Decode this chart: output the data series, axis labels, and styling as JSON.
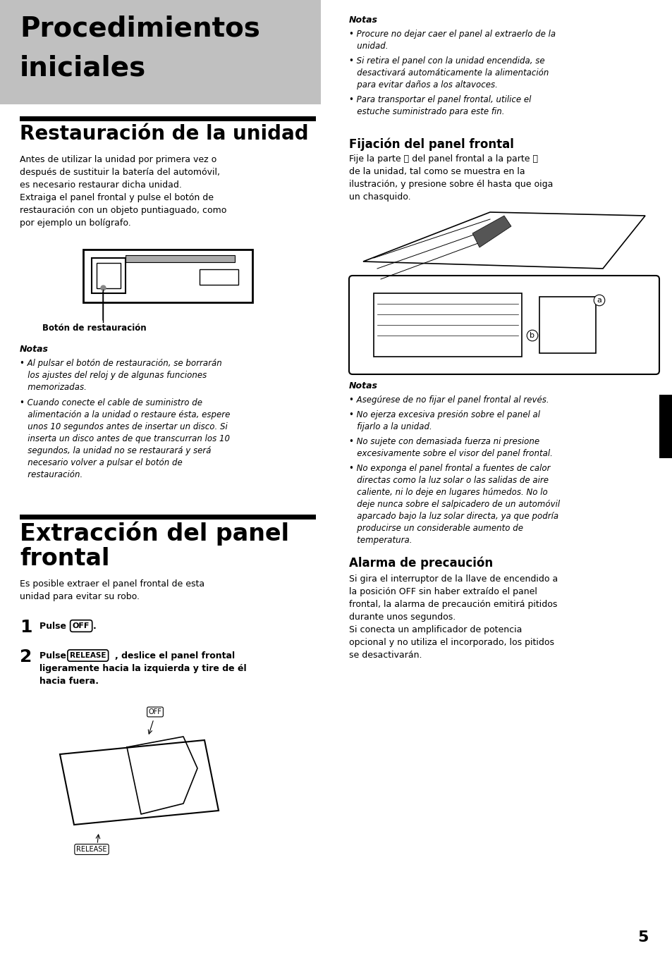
{
  "bg_color": "#ffffff",
  "page_number": "5",
  "header_bg": "#c0c0c0",
  "header_title_line1": "Procedimientos",
  "header_title_line2": "iniciales",
  "section1_title": "Restauración de la unidad",
  "section1_body_lines": [
    "Antes de utilizar la unidad por primera vez o",
    "después de sustituir la batería del automóvil,",
    "es necesario restaurar dicha unidad.",
    "Extraiga el panel frontal y pulse el botón de",
    "restauración con un objeto puntiaguado, como",
    "por ejemplo un bolígrafo."
  ],
  "section1_label": "Botón de restauración",
  "section1_notes_title": "Notas",
  "section1_notes": [
    [
      "Al pulsar el botón de restauración, se borrarán",
      "los ajustes del reloj y de algunas funciones",
      "memorizadas."
    ],
    [
      "Cuando conecte el cable de suministro de",
      "alimentación a la unidad o restaure ésta, espere",
      "unos 10 segundos antes de insertar un disco. Si",
      "inserta un disco antes de que transcurran los 10",
      "segundos, la unidad no se restaurará y será",
      "necesario volver a pulsar el botón de",
      "restauración."
    ]
  ],
  "section2_title_line1": "Extracción del panel",
  "section2_title_line2": "frontal",
  "section2_body_lines": [
    "Es posible extraer el panel frontal de esta",
    "unidad para evitar su robo."
  ],
  "step1_text": "Pulse",
  "step1_btn": "OFF",
  "step1_end": ".",
  "step2_text": "Pulse",
  "step2_btn": "RELEASE",
  "step2_bold_lines": [
    ", deslice el panel frontal",
    "ligeramente hacia la izquierda y tire de él",
    "hacia fuera."
  ],
  "right_notes_title": "Notas",
  "right_notes": [
    [
      "Procure no dejar caer el panel al extraerlo de la",
      "unidad."
    ],
    [
      "Si retira el panel con la unidad encendida, se",
      "desactivará automáticamente la alimentación",
      "para evitar daños a los altavoces."
    ],
    [
      "Para transportar el panel frontal, utilice el",
      "estuche suministrado para este fin."
    ]
  ],
  "fijacion_title": "Fijación del panel frontal",
  "fijacion_body_lines": [
    "Fije la parte ⓐ del panel frontal a la parte ⓑ",
    "de la unidad, tal como se muestra en la",
    "ilustración, y presione sobre él hasta que oiga",
    "un chasquido."
  ],
  "right_notes2_title": "Notas",
  "right_notes2": [
    [
      "Asegúrese de no fijar el panel frontal al revés."
    ],
    [
      "No ejerza excesiva presión sobre el panel al",
      "fijarlo a la unidad."
    ],
    [
      "No sujete con demasiada fuerza ni presione",
      "excesivamente sobre el visor del panel frontal."
    ],
    [
      "No exponga el panel frontal a fuentes de calor",
      "directas como la luz solar o las salidas de aire",
      "caliente, ni lo deje en lugares húmedos. No lo",
      "deje nunca sobre el salpicadero de un automóvil",
      "aparcado bajo la luz solar directa, ya que podría",
      "producirse un considerable aumento de",
      "temperatura."
    ]
  ],
  "alarma_title": "Alarma de precaución",
  "alarma_body_lines": [
    "Si gira el interruptor de la llave de encendido a",
    "la posición OFF sin haber extraído el panel",
    "frontal, la alarma de precaución emitirá pitidos",
    "durante unos segundos.",
    "Si conecta un amplificador de potencia",
    "opcional y no utiliza el incorporado, los pitidos",
    "se desactivarán."
  ]
}
